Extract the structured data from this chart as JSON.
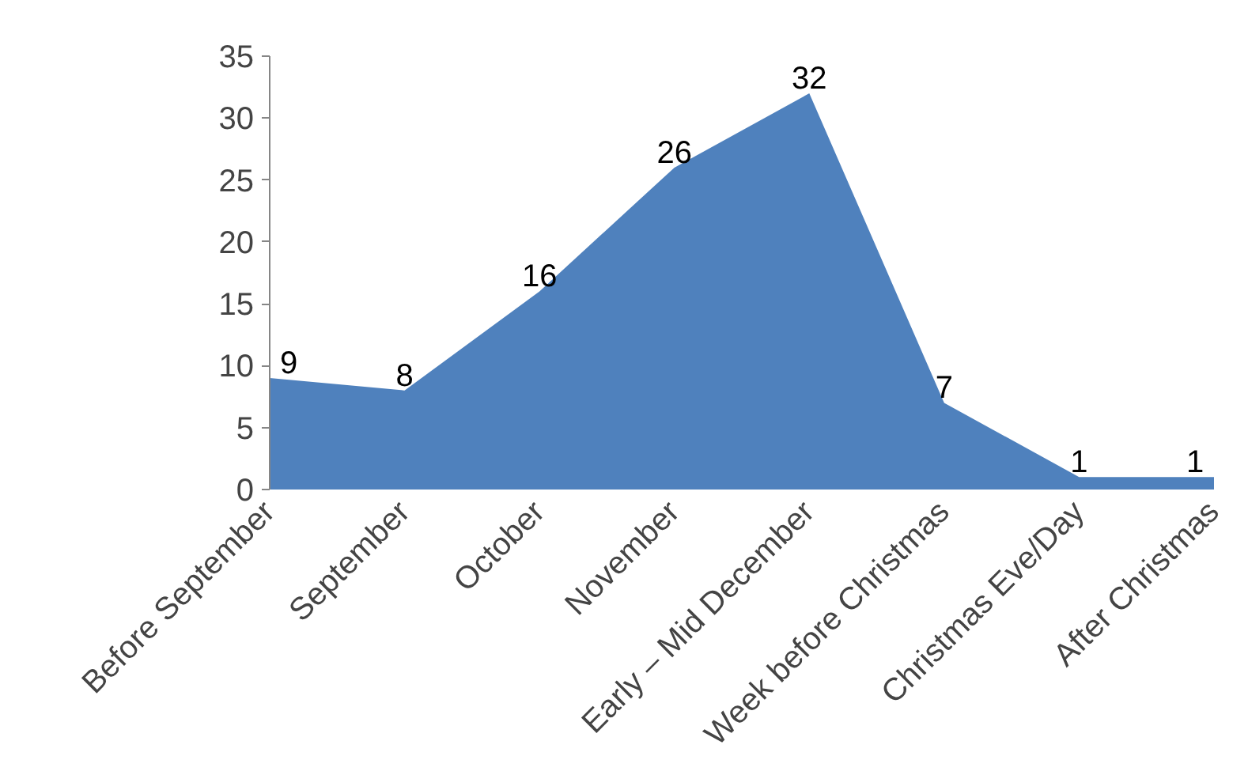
{
  "chart_data": {
    "type": "area",
    "categories": [
      "Before September",
      "September",
      "October",
      "November",
      "Early – Mid December",
      "Week before Christmas",
      "Christmas Eve/Day",
      "After Christmas"
    ],
    "values": [
      9,
      8,
      16,
      26,
      32,
      7,
      1,
      1
    ],
    "color": "#4f81bd",
    "ylim": [
      0,
      35
    ],
    "yticks": [
      0,
      5,
      10,
      15,
      20,
      25,
      30,
      35
    ],
    "grid": false,
    "data_labels": true
  }
}
